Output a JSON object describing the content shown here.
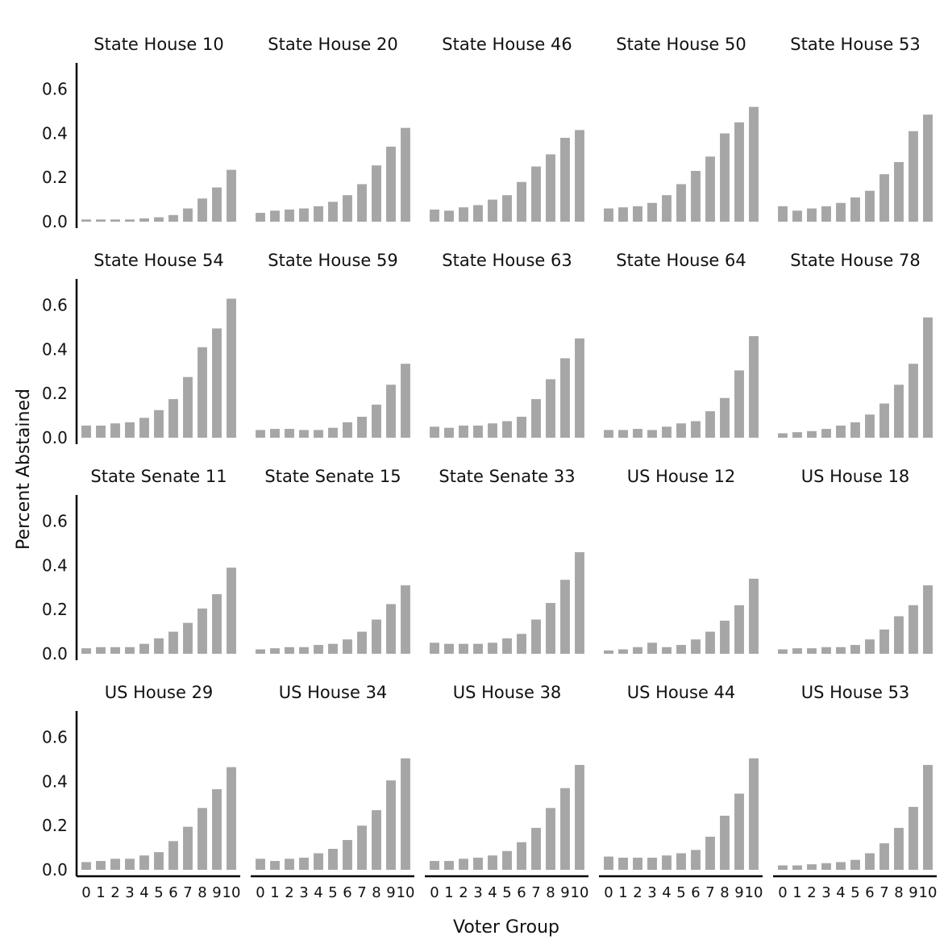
{
  "chart_data": {
    "type": "bar",
    "layout": "facet-grid-4x5",
    "xlabel": "Voter Group",
    "ylabel": "Percent Abstained",
    "categories": [
      "0",
      "1",
      "2",
      "3",
      "4",
      "5",
      "6",
      "7",
      "8",
      "9",
      "10"
    ],
    "ylim": [
      0,
      0.65
    ],
    "yticks": [
      0.0,
      0.2,
      0.4,
      0.6
    ],
    "ytick_labels": [
      "0.0",
      "0.2",
      "0.4",
      "0.6"
    ],
    "bar_color": "#a6a6a6",
    "grid": false,
    "panels": [
      {
        "title": "State House 10",
        "values": [
          0.01,
          0.01,
          0.01,
          0.01,
          0.015,
          0.02,
          0.03,
          0.06,
          0.105,
          0.155,
          0.235
        ]
      },
      {
        "title": "State House 20",
        "values": [
          0.04,
          0.05,
          0.055,
          0.06,
          0.07,
          0.09,
          0.12,
          0.17,
          0.255,
          0.34,
          0.425
        ]
      },
      {
        "title": "State House 46",
        "values": [
          0.055,
          0.05,
          0.065,
          0.075,
          0.1,
          0.12,
          0.18,
          0.25,
          0.305,
          0.38,
          0.415
        ]
      },
      {
        "title": "State House 50",
        "values": [
          0.06,
          0.065,
          0.07,
          0.085,
          0.12,
          0.17,
          0.23,
          0.295,
          0.4,
          0.45,
          0.52
        ]
      },
      {
        "title": "State House 53",
        "values": [
          0.07,
          0.05,
          0.06,
          0.07,
          0.085,
          0.11,
          0.14,
          0.215,
          0.27,
          0.41,
          0.485
        ]
      },
      {
        "title": "State House 54",
        "values": [
          0.055,
          0.055,
          0.065,
          0.07,
          0.09,
          0.125,
          0.175,
          0.275,
          0.41,
          0.495,
          0.63
        ]
      },
      {
        "title": "State House 59",
        "values": [
          0.035,
          0.04,
          0.04,
          0.035,
          0.035,
          0.045,
          0.07,
          0.095,
          0.15,
          0.24,
          0.335
        ]
      },
      {
        "title": "State House 63",
        "values": [
          0.05,
          0.045,
          0.055,
          0.055,
          0.065,
          0.075,
          0.095,
          0.175,
          0.265,
          0.36,
          0.45
        ]
      },
      {
        "title": "State House 64",
        "values": [
          0.035,
          0.035,
          0.04,
          0.035,
          0.05,
          0.065,
          0.075,
          0.12,
          0.18,
          0.305,
          0.46
        ]
      },
      {
        "title": "State House 78",
        "values": [
          0.02,
          0.025,
          0.03,
          0.04,
          0.055,
          0.07,
          0.105,
          0.155,
          0.24,
          0.335,
          0.545
        ]
      },
      {
        "title": "State Senate 11",
        "values": [
          0.025,
          0.03,
          0.03,
          0.03,
          0.045,
          0.07,
          0.1,
          0.14,
          0.205,
          0.27,
          0.39
        ]
      },
      {
        "title": "State Senate 15",
        "values": [
          0.02,
          0.025,
          0.03,
          0.03,
          0.04,
          0.045,
          0.065,
          0.1,
          0.155,
          0.225,
          0.31
        ]
      },
      {
        "title": "State Senate 33",
        "values": [
          0.05,
          0.045,
          0.045,
          0.045,
          0.05,
          0.07,
          0.09,
          0.155,
          0.23,
          0.335,
          0.46
        ]
      },
      {
        "title": "US House 12",
        "values": [
          0.015,
          0.02,
          0.03,
          0.05,
          0.03,
          0.04,
          0.065,
          0.1,
          0.15,
          0.22,
          0.34
        ]
      },
      {
        "title": "US House 18",
        "values": [
          0.02,
          0.025,
          0.025,
          0.03,
          0.03,
          0.04,
          0.065,
          0.11,
          0.17,
          0.22,
          0.31
        ]
      },
      {
        "title": "US House 29",
        "values": [
          0.035,
          0.04,
          0.05,
          0.05,
          0.065,
          0.08,
          0.13,
          0.195,
          0.28,
          0.365,
          0.465
        ]
      },
      {
        "title": "US House 34",
        "values": [
          0.05,
          0.04,
          0.05,
          0.055,
          0.075,
          0.095,
          0.135,
          0.2,
          0.27,
          0.405,
          0.505
        ]
      },
      {
        "title": "US House 38",
        "values": [
          0.04,
          0.04,
          0.05,
          0.055,
          0.065,
          0.085,
          0.125,
          0.19,
          0.28,
          0.37,
          0.475
        ]
      },
      {
        "title": "US House 44",
        "values": [
          0.06,
          0.055,
          0.055,
          0.055,
          0.065,
          0.075,
          0.09,
          0.15,
          0.245,
          0.345,
          0.505
        ]
      },
      {
        "title": "US House 53",
        "values": [
          0.02,
          0.02,
          0.025,
          0.03,
          0.035,
          0.045,
          0.075,
          0.12,
          0.19,
          0.285,
          0.475
        ]
      }
    ]
  }
}
